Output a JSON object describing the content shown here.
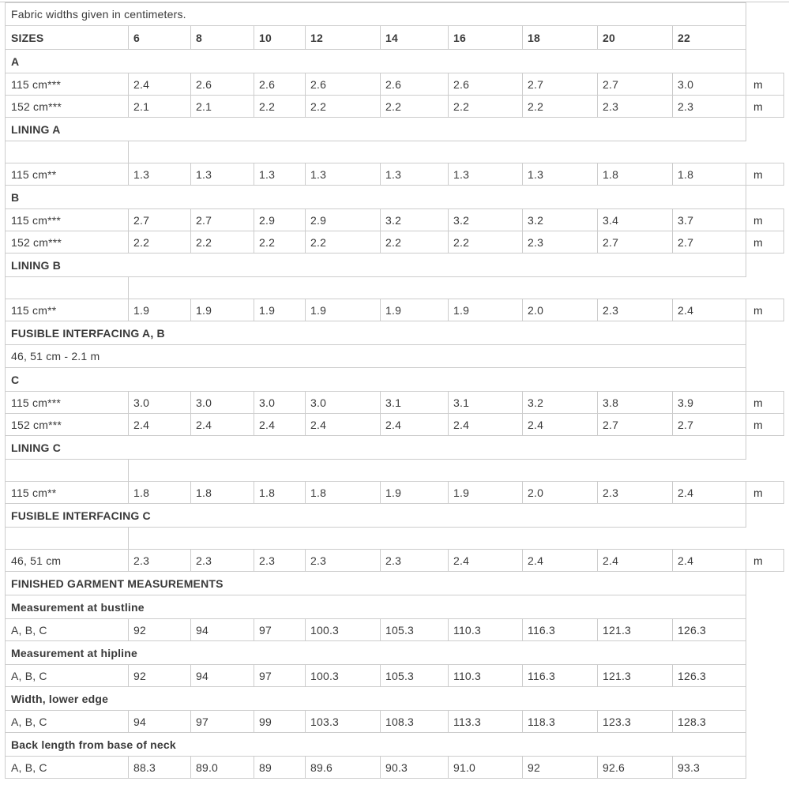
{
  "table_title_note": "Fabric widths given in centimeters.",
  "unit_label": "m",
  "sizes_header": "SIZES",
  "sizes": [
    "6",
    "8",
    "10",
    "12",
    "14",
    "16",
    "18",
    "20",
    "22"
  ],
  "colors": {
    "border": "#cccccc",
    "text": "#3a3a3a",
    "background": "#ffffff"
  },
  "rows": [
    {
      "type": "note",
      "label": "Fabric widths given in centimeters."
    },
    {
      "type": "sizes",
      "label": "SIZES"
    },
    {
      "type": "section",
      "label": "A"
    },
    {
      "type": "data",
      "label": "115 cm***",
      "values": [
        "2.4",
        "2.6",
        "2.6",
        "2.6",
        "2.6",
        "2.6",
        "2.7",
        "2.7",
        "3.0"
      ],
      "unit": "m"
    },
    {
      "type": "data",
      "label": "152 cm***",
      "values": [
        "2.1",
        "2.1",
        "2.2",
        "2.2",
        "2.2",
        "2.2",
        "2.2",
        "2.3",
        "2.3"
      ],
      "unit": "m"
    },
    {
      "type": "section",
      "label": "LINING A"
    },
    {
      "type": "spacer",
      "label": ""
    },
    {
      "type": "data",
      "label": "115 cm**",
      "values": [
        "1.3",
        "1.3",
        "1.3",
        "1.3",
        "1.3",
        "1.3",
        "1.3",
        "1.8",
        "1.8"
      ],
      "unit": "m"
    },
    {
      "type": "section",
      "label": "B"
    },
    {
      "type": "data",
      "label": "115 cm***",
      "values": [
        "2.7",
        "2.7",
        "2.9",
        "2.9",
        "3.2",
        "3.2",
        "3.2",
        "3.4",
        "3.7"
      ],
      "unit": "m"
    },
    {
      "type": "data",
      "label": "152 cm***",
      "values": [
        "2.2",
        "2.2",
        "2.2",
        "2.2",
        "2.2",
        "2.2",
        "2.3",
        "2.7",
        "2.7"
      ],
      "unit": "m"
    },
    {
      "type": "section",
      "label": "LINING B"
    },
    {
      "type": "spacer",
      "label": ""
    },
    {
      "type": "data",
      "label": "115 cm**",
      "values": [
        "1.9",
        "1.9",
        "1.9",
        "1.9",
        "1.9",
        "1.9",
        "2.0",
        "2.3",
        "2.4"
      ],
      "unit": "m"
    },
    {
      "type": "section",
      "label": "FUSIBLE INTERFACING A, B"
    },
    {
      "type": "note",
      "label": "46, 51 cm - 2.1 m"
    },
    {
      "type": "section",
      "label": "C"
    },
    {
      "type": "data",
      "label": "115 cm***",
      "values": [
        "3.0",
        "3.0",
        "3.0",
        "3.0",
        "3.1",
        "3.1",
        "3.2",
        "3.8",
        "3.9"
      ],
      "unit": "m"
    },
    {
      "type": "data",
      "label": "152 cm***",
      "values": [
        "2.4",
        "2.4",
        "2.4",
        "2.4",
        "2.4",
        "2.4",
        "2.4",
        "2.7",
        "2.7"
      ],
      "unit": "m"
    },
    {
      "type": "section",
      "label": "LINING C"
    },
    {
      "type": "spacer",
      "label": ""
    },
    {
      "type": "data",
      "label": "115 cm**",
      "values": [
        "1.8",
        "1.8",
        "1.8",
        "1.8",
        "1.9",
        "1.9",
        "2.0",
        "2.3",
        "2.4"
      ],
      "unit": "m"
    },
    {
      "type": "section",
      "label": "FUSIBLE INTERFACING C"
    },
    {
      "type": "spacer",
      "label": ""
    },
    {
      "type": "data",
      "label": "46, 51 cm",
      "values": [
        "2.3",
        "2.3",
        "2.3",
        "2.3",
        "2.3",
        "2.4",
        "2.4",
        "2.4",
        "2.4"
      ],
      "unit": "m"
    },
    {
      "type": "section",
      "label": "FINISHED GARMENT MEASUREMENTS"
    },
    {
      "type": "section",
      "label": "Measurement at bustline"
    },
    {
      "type": "data",
      "label": "A, B, C",
      "values": [
        "92",
        "94",
        "97",
        "100.3",
        "105.3",
        "110.3",
        "116.3",
        "121.3",
        "126.3"
      ],
      "unit": ""
    },
    {
      "type": "section",
      "label": "Measurement at hipline"
    },
    {
      "type": "data",
      "label": "A, B, C",
      "values": [
        "92",
        "94",
        "97",
        "100.3",
        "105.3",
        "110.3",
        "116.3",
        "121.3",
        "126.3"
      ],
      "unit": ""
    },
    {
      "type": "section",
      "label": "Width, lower edge"
    },
    {
      "type": "data",
      "label": "A, B, C",
      "values": [
        "94",
        "97",
        "99",
        "103.3",
        "108.3",
        "113.3",
        "118.3",
        "123.3",
        "128.3"
      ],
      "unit": ""
    },
    {
      "type": "section",
      "label": "Back length from base of neck"
    },
    {
      "type": "data",
      "label": "A, B, C",
      "values": [
        "88.3",
        "89.0",
        "89",
        "89.6",
        "90.3",
        "91.0",
        "92",
        "92.6",
        "93.3"
      ],
      "unit": ""
    }
  ]
}
